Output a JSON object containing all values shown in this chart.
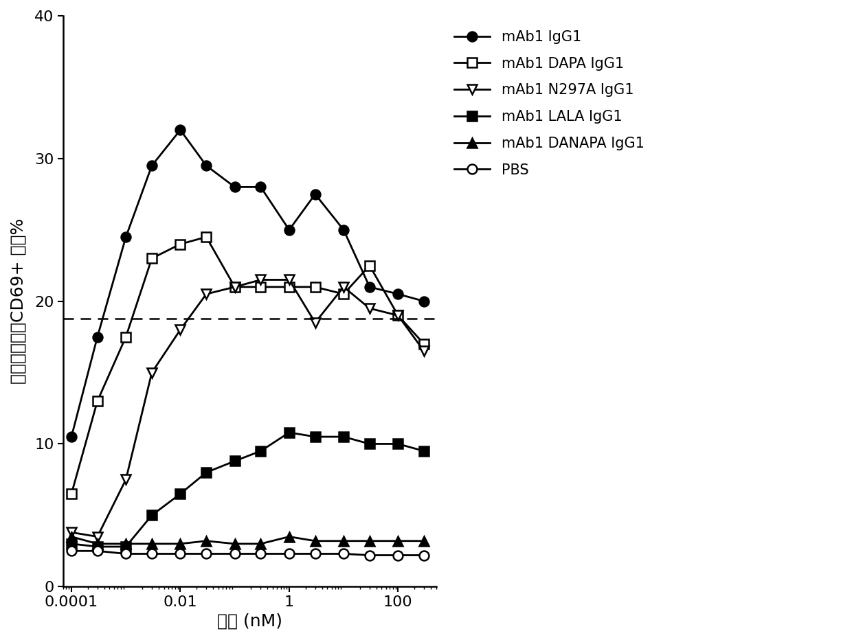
{
  "x_values": [
    0.0001,
    0.0003,
    0.001,
    0.003,
    0.01,
    0.03,
    0.1,
    0.3,
    1,
    3,
    10,
    30,
    100,
    300
  ],
  "series": {
    "mAb1 IgG1": {
      "y": [
        10.5,
        17.5,
        24.5,
        29.5,
        32.0,
        29.5,
        28.0,
        28.0,
        25.0,
        27.5,
        25.0,
        21.0,
        20.5,
        20.0
      ],
      "marker": "o",
      "fillstyle": "full",
      "color": "black",
      "linewidth": 2.0,
      "markersize": 10
    },
    "mAb1 DAPA IgG1": {
      "y": [
        6.5,
        13.0,
        17.5,
        23.0,
        24.0,
        24.5,
        21.0,
        21.0,
        21.0,
        21.0,
        20.5,
        22.5,
        19.0,
        17.0
      ],
      "marker": "s",
      "fillstyle": "none",
      "color": "black",
      "linewidth": 2.0,
      "markersize": 10
    },
    "mAb1 N297A IgG1": {
      "y": [
        3.8,
        3.5,
        7.5,
        15.0,
        18.0,
        20.5,
        21.0,
        21.5,
        21.5,
        18.5,
        21.0,
        19.5,
        19.0,
        16.5
      ],
      "marker": "v",
      "fillstyle": "none",
      "color": "black",
      "linewidth": 2.0,
      "markersize": 10
    },
    "mAb1 LALA IgG1": {
      "y": [
        3.0,
        2.8,
        2.8,
        5.0,
        6.5,
        8.0,
        8.8,
        9.5,
        10.8,
        10.5,
        10.5,
        10.0,
        10.0,
        9.5
      ],
      "marker": "s",
      "fillstyle": "full",
      "color": "black",
      "linewidth": 2.0,
      "markersize": 10
    },
    "mAb1 DANAPA IgG1": {
      "y": [
        3.5,
        3.0,
        3.0,
        3.0,
        3.0,
        3.2,
        3.0,
        3.0,
        3.5,
        3.2,
        3.2,
        3.2,
        3.2,
        3.2
      ],
      "marker": "^",
      "fillstyle": "full",
      "color": "black",
      "linewidth": 2.0,
      "markersize": 10
    },
    "PBS": {
      "y": [
        2.5,
        2.5,
        2.3,
        2.3,
        2.3,
        2.3,
        2.3,
        2.3,
        2.3,
        2.3,
        2.3,
        2.2,
        2.2,
        2.2
      ],
      "marker": "o",
      "fillstyle": "none",
      "color": "black",
      "linewidth": 2.0,
      "markersize": 10
    }
  },
  "hline_y": 18.8,
  "xlabel": "浓度 (nM)",
  "ylabel": "总淡巴细胞的CD69+ 细胞%",
  "ylim": [
    0,
    40
  ],
  "yticks": [
    0,
    10,
    20,
    30,
    40
  ],
  "xticks": [
    0.0001,
    0.01,
    1,
    100
  ],
  "xticklabels": [
    "0.0001",
    "0.01",
    "1",
    "100"
  ],
  "xlim": [
    7e-05,
    500
  ],
  "legend_order": [
    "mAb1 IgG1",
    "mAb1 DAPA IgG1",
    "mAb1 N297A IgG1",
    "mAb1 LALA IgG1",
    "mAb1 DANAPA IgG1",
    "PBS"
  ],
  "axis_fontsize": 18,
  "tick_fontsize": 16,
  "legend_fontsize": 15
}
